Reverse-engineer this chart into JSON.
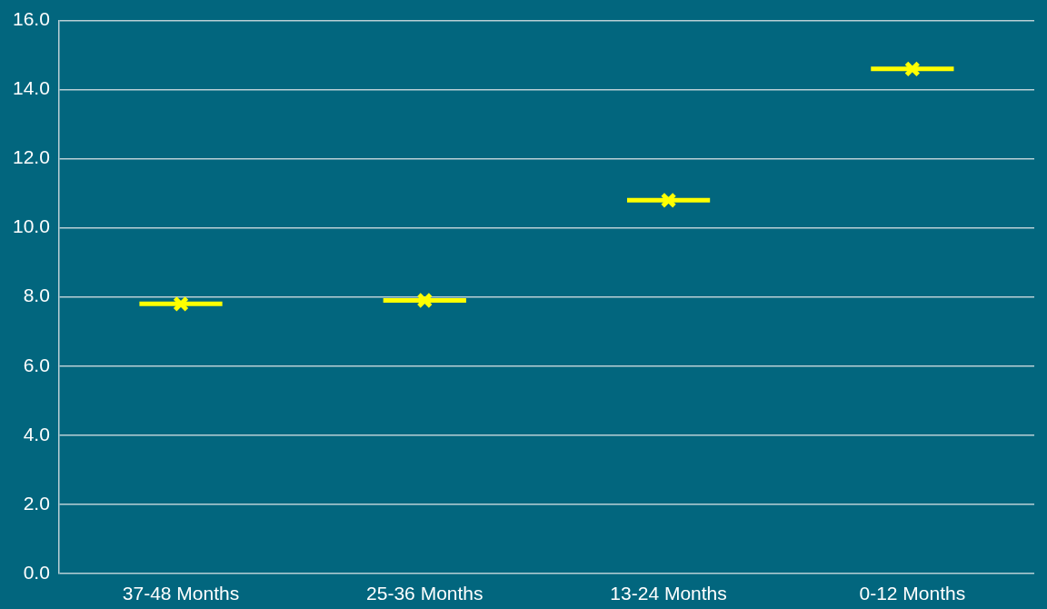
{
  "chart_data": {
    "type": "box",
    "categories": [
      "37-48 Months",
      "25-36 Months",
      "13-24 Months",
      "0-12 Months"
    ],
    "series": [
      {
        "color": "#ffff00",
        "boxes": [
          {
            "low": 7.8,
            "q1": 7.8,
            "median": 7.8,
            "q3": 7.8,
            "high": 7.8,
            "mean": 7.8
          },
          {
            "low": 7.9,
            "q1": 7.9,
            "median": 7.9,
            "q3": 7.9,
            "high": 7.9,
            "mean": 7.9
          },
          {
            "low": 10.8,
            "q1": 10.8,
            "median": 10.8,
            "q3": 10.8,
            "high": 10.8,
            "mean": 10.8
          },
          {
            "low": 14.6,
            "q1": 14.6,
            "median": 14.6,
            "q3": 14.6,
            "high": 14.6,
            "mean": 14.6
          }
        ]
      }
    ],
    "marker": "cross",
    "ylim": [
      0,
      16
    ],
    "yticks": [
      {
        "value": 0,
        "label": "0.0"
      },
      {
        "value": 2,
        "label": "2.0"
      },
      {
        "value": 4,
        "label": "4.0"
      },
      {
        "value": 6,
        "label": "6.0"
      },
      {
        "value": 8,
        "label": "8.0"
      },
      {
        "value": 10,
        "label": "10.0"
      },
      {
        "value": 12,
        "label": "12.0"
      },
      {
        "value": 14,
        "label": "14.0"
      },
      {
        "value": 16,
        "label": "16.0"
      }
    ],
    "grid": "y",
    "legend": false
  }
}
